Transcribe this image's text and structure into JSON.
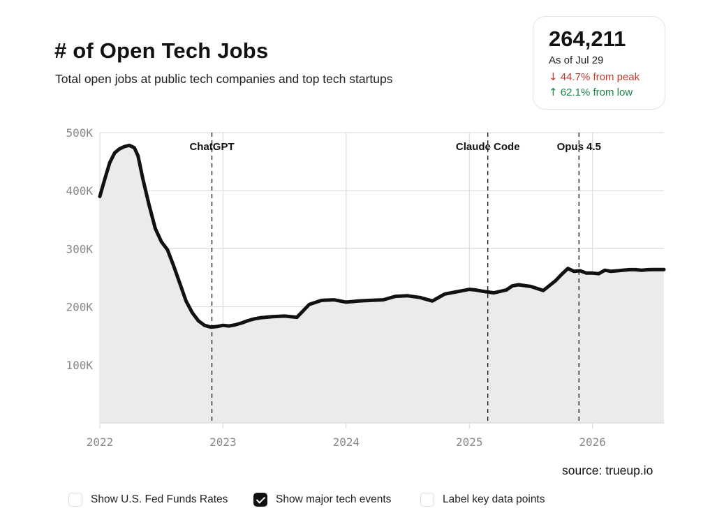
{
  "header": {
    "title": "# of Open Tech Jobs",
    "subtitle": "Total open jobs at public tech companies and top tech startups"
  },
  "stat_card": {
    "value": "264,211",
    "as_of": "As of Jul 29",
    "peak_arrow": "↓",
    "peak_text": "44.7% from peak",
    "low_arrow": "↑",
    "low_text": "62.1% from low"
  },
  "source": "source: trueup.io",
  "toggles": [
    {
      "label": "Show U.S. Fed Funds Rates",
      "checked": false
    },
    {
      "label": "Show major tech events",
      "checked": true
    },
    {
      "label": "Label key data points",
      "checked": false
    }
  ],
  "colors": {
    "line": "#111111",
    "area": "#ebebeb",
    "grid": "#d6d6d6",
    "peak": "#c0392b",
    "low": "#1e8449"
  },
  "chart_data": {
    "type": "area",
    "xlim": [
      2022.0,
      2026.58
    ],
    "ylim": [
      0,
      500000
    ],
    "y_ticks": [
      100000,
      200000,
      300000,
      400000,
      500000
    ],
    "y_tick_labels": [
      "100K",
      "200K",
      "300K",
      "400K",
      "500K"
    ],
    "x_ticks": [
      2022,
      2023,
      2024,
      2025,
      2026
    ],
    "x_tick_labels": [
      "2022",
      "2023",
      "2024",
      "2025",
      "2026"
    ],
    "grid": true,
    "events": [
      {
        "label": "ChatGPT",
        "x": 2022.91
      },
      {
        "label": "Claude Code",
        "x": 2025.15
      },
      {
        "label": "Opus 4.5",
        "x": 2025.89
      }
    ],
    "series": [
      {
        "x": [
          2022.0,
          2022.04,
          2022.08,
          2022.12,
          2022.16,
          2022.2,
          2022.24,
          2022.28,
          2022.31,
          2022.35,
          2022.4,
          2022.45,
          2022.5,
          2022.55,
          2022.6,
          2022.65,
          2022.7,
          2022.75,
          2022.8,
          2022.85,
          2022.9,
          2022.95,
          2023.0,
          2023.05,
          2023.1,
          2023.15,
          2023.2,
          2023.25,
          2023.3,
          2023.4,
          2023.5,
          2023.6,
          2023.7,
          2023.8,
          2023.9,
          2024.0,
          2024.05,
          2024.1,
          2024.2,
          2024.3,
          2024.4,
          2024.5,
          2024.6,
          2024.7,
          2024.8,
          2024.9,
          2024.95,
          2025.0,
          2025.05,
          2025.1,
          2025.2,
          2025.3,
          2025.35,
          2025.4,
          2025.5,
          2025.6,
          2025.7,
          2025.75,
          2025.8,
          2025.85,
          2025.9,
          2025.95,
          2026.0,
          2026.05,
          2026.1,
          2026.15,
          2026.2,
          2026.3,
          2026.35,
          2026.4,
          2026.45,
          2026.5,
          2026.58
        ],
        "y": [
          390000,
          420000,
          448000,
          465000,
          472000,
          476000,
          478000,
          474000,
          460000,
          420000,
          375000,
          335000,
          312000,
          298000,
          270000,
          240000,
          210000,
          190000,
          176000,
          168000,
          165000,
          166000,
          168000,
          167000,
          169000,
          172000,
          176000,
          179000,
          181000,
          183000,
          184000,
          182000,
          204000,
          211000,
          212000,
          208000,
          209000,
          210000,
          211000,
          212000,
          218000,
          219000,
          216000,
          210000,
          222000,
          226000,
          228000,
          230000,
          229000,
          227000,
          224000,
          229000,
          236000,
          238000,
          235000,
          228000,
          245000,
          256000,
          266000,
          261000,
          262000,
          258000,
          258000,
          257000,
          263000,
          261000,
          262000,
          264000,
          264000,
          263000,
          264000,
          264211,
          264211
        ]
      }
    ]
  }
}
